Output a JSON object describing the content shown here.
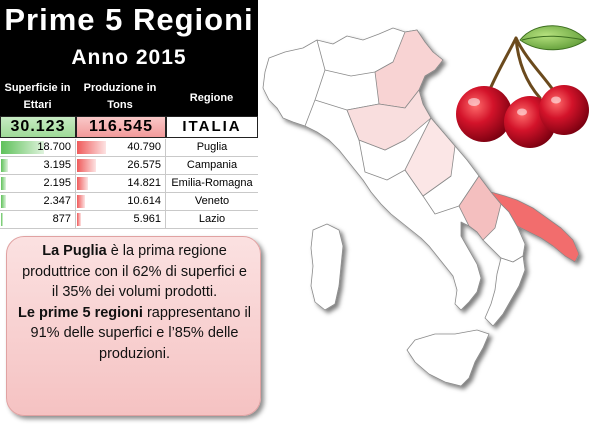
{
  "title": {
    "main": "Prime 5 Regioni",
    "year": "Anno 2015"
  },
  "table": {
    "headers": {
      "surface": "Superficie in Ettari",
      "production": "Produzione in Tons",
      "region": "Regione"
    },
    "total": {
      "surface": "30.123",
      "production": "116.545",
      "region": "ITALIA"
    },
    "rows": [
      {
        "surface": "18.700",
        "production": "40.790",
        "region": "Puglia",
        "surface_share": 0.621,
        "production_share": 0.35
      },
      {
        "surface": "3.195",
        "production": "26.575",
        "region": "Campania",
        "surface_share": 0.106,
        "production_share": 0.228
      },
      {
        "surface": "2.195",
        "production": "14.821",
        "region": "Emilia-Romagna",
        "surface_share": 0.073,
        "production_share": 0.127
      },
      {
        "surface": "2.347",
        "production": "10.614",
        "region": "Veneto",
        "surface_share": 0.078,
        "production_share": 0.091
      },
      {
        "surface": "877",
        "production": "5.961",
        "region": "Lazio",
        "surface_share": 0.029,
        "production_share": 0.051
      }
    ]
  },
  "info": {
    "p1_bold": "La Puglia",
    "p1_text": " è la prima regione produttrice con il 62% di superfici e il 35% dei volumi prodotti.",
    "p2_bold": "Le prime 5 regioni",
    "p2_text": " rappresentano il 91% delle superfici e l’85% delle produzioni."
  },
  "colors": {
    "title_bg": "#000000",
    "surface_accent": "#5fc15a",
    "production_accent": "#ef5b5b",
    "puglia_fill": "#f26d6d",
    "other_top_regions_fill": "#f7c9c9",
    "map_base": "#ffffff"
  },
  "icons": [
    "italy-map-icon",
    "cherries-icon"
  ]
}
